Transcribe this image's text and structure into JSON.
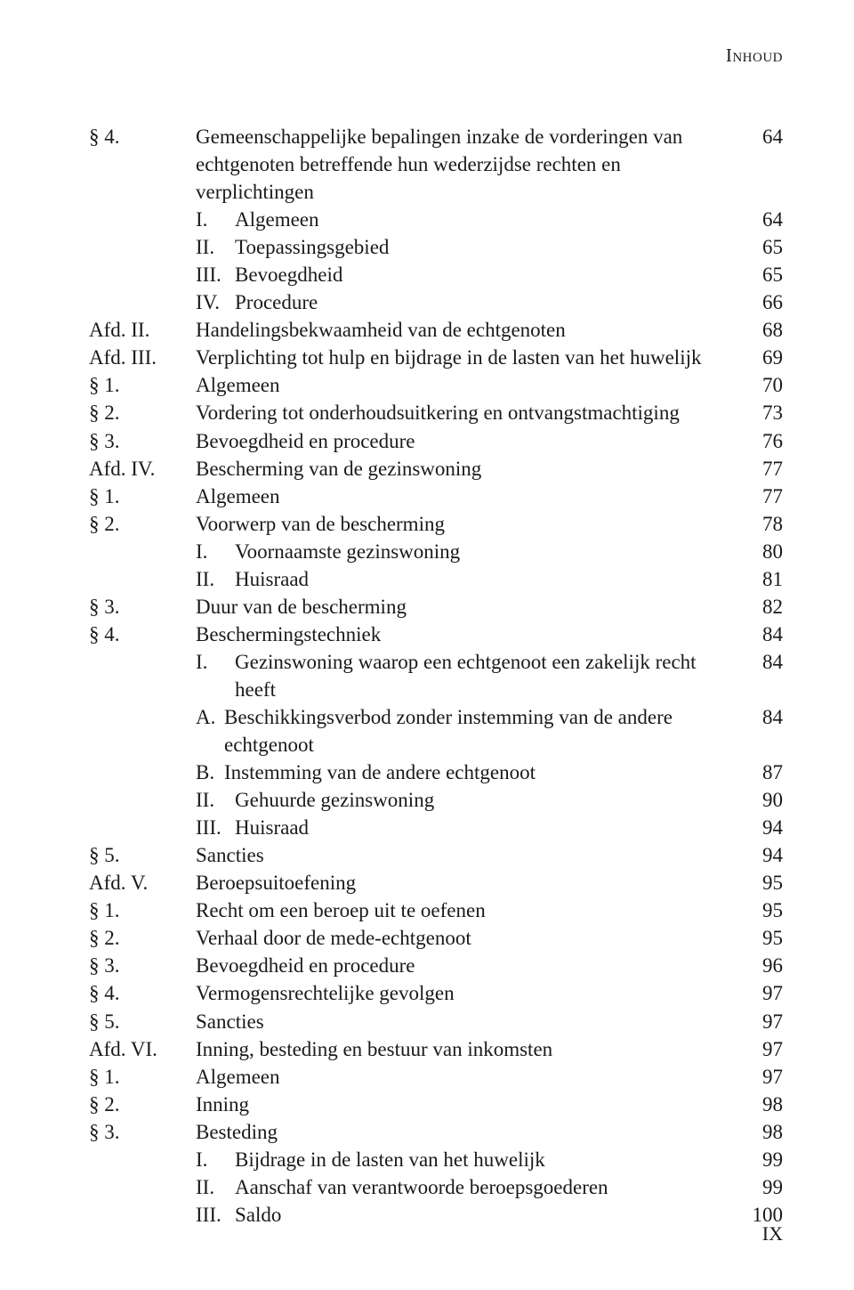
{
  "header": {
    "running": "Inhoud"
  },
  "folio": "IX",
  "rows": [
    {
      "label": "§ 4.",
      "text": "Gemeenschappelijke bepalingen inzake de vorderingen van echtgenoten betreffende hun wederzijdse rechten en verplichtingen",
      "page": "64"
    },
    {
      "label": "",
      "sub": {
        "r": "I.",
        "t": "Algemeen"
      },
      "page": "64"
    },
    {
      "label": "",
      "sub": {
        "r": "II.",
        "t": "Toepassingsgebied"
      },
      "page": "65"
    },
    {
      "label": "",
      "sub": {
        "r": "III.",
        "t": "Bevoegdheid"
      },
      "page": "65"
    },
    {
      "label": "",
      "sub": {
        "r": "IV.",
        "t": "Procedure"
      },
      "page": "66"
    },
    {
      "label": "Afd. II.",
      "text": "Handelingsbekwaamheid van de echtgenoten",
      "page": "68"
    },
    {
      "label": "Afd. III.",
      "text": "Verplichting tot hulp en bijdrage in de lasten van het huwelijk",
      "page": "69"
    },
    {
      "label": "§ 1.",
      "text": "Algemeen",
      "page": "70"
    },
    {
      "label": "§ 2.",
      "text": "Vordering tot onderhoudsuitkering en ontvangstmachtiging",
      "page": "73"
    },
    {
      "label": "§ 3.",
      "text": "Bevoegdheid en procedure",
      "page": "76"
    },
    {
      "label": "Afd. IV.",
      "text": "Bescherming van de gezinswoning",
      "page": "77"
    },
    {
      "label": "§ 1.",
      "text": "Algemeen",
      "page": "77"
    },
    {
      "label": "§ 2.",
      "text": "Voorwerp van de bescherming",
      "page": "78"
    },
    {
      "label": "",
      "sub": {
        "r": "I.",
        "t": "Voornaamste gezinswoning"
      },
      "page": "80"
    },
    {
      "label": "",
      "sub": {
        "r": "II.",
        "t": "Huisraad"
      },
      "page": "81"
    },
    {
      "label": "§ 3.",
      "text": "Duur van de bescherming",
      "page": "82"
    },
    {
      "label": "§ 4.",
      "text": "Beschermingstechniek",
      "page": "84"
    },
    {
      "label": "",
      "sub": {
        "r": "I.",
        "t": "Gezinswoning waarop een echtgenoot een zakelijk recht heeft"
      },
      "page": "84"
    },
    {
      "label": "",
      "letter": {
        "l": "A.",
        "t": "Beschikkingsverbod zonder instemming van de andere echtgenoot"
      },
      "page": "84"
    },
    {
      "label": "",
      "letter": {
        "l": "B.",
        "t": "Instemming van de andere echtgenoot"
      },
      "page": "87"
    },
    {
      "label": "",
      "sub": {
        "r": "II.",
        "t": "Gehuurde gezinswoning"
      },
      "page": "90"
    },
    {
      "label": "",
      "sub": {
        "r": "III.",
        "t": "Huisraad"
      },
      "page": "94"
    },
    {
      "label": "§ 5.",
      "text": "Sancties",
      "page": "94"
    },
    {
      "label": "Afd. V.",
      "text": "Beroepsuitoefening",
      "page": "95"
    },
    {
      "label": "§ 1.",
      "text": "Recht om een beroep uit te oefenen",
      "page": "95"
    },
    {
      "label": "§ 2.",
      "text": "Verhaal door de mede-echtgenoot",
      "page": "95"
    },
    {
      "label": "§ 3.",
      "text": "Bevoegdheid en procedure",
      "page": "96"
    },
    {
      "label": "§ 4.",
      "text": "Vermogensrechtelijke gevolgen",
      "page": "97"
    },
    {
      "label": "§ 5.",
      "text": "Sancties",
      "page": "97"
    },
    {
      "label": "Afd. VI.",
      "text": "Inning, besteding en bestuur van inkomsten",
      "page": "97"
    },
    {
      "label": "§ 1.",
      "text": "Algemeen",
      "page": "97"
    },
    {
      "label": "§ 2.",
      "text": "Inning",
      "page": "98"
    },
    {
      "label": "§ 3.",
      "text": "Besteding",
      "page": "98"
    },
    {
      "label": "",
      "sub": {
        "r": "I.",
        "t": "Bijdrage in de lasten van het huwelijk"
      },
      "page": "99"
    },
    {
      "label": "",
      "sub": {
        "r": "II.",
        "t": "Aanschaf van verantwoorde beroepsgoederen"
      },
      "page": "99"
    },
    {
      "label": "",
      "sub": {
        "r": "III.",
        "t": "Saldo"
      },
      "page": "100"
    }
  ]
}
